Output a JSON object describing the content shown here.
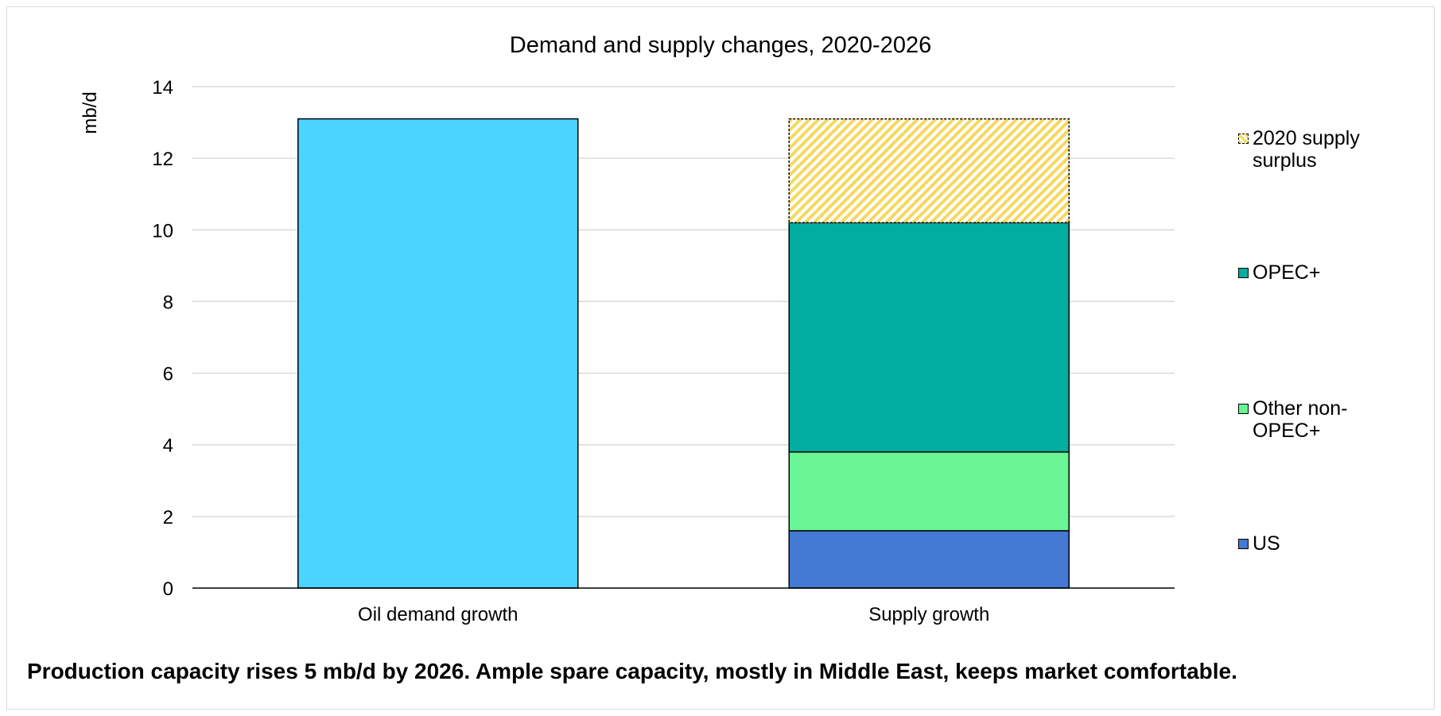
{
  "chart_data": {
    "type": "bar",
    "stacked": true,
    "title": "Demand and supply changes, 2020-2026",
    "ylabel": "mb/d",
    "xlabel": "",
    "ylim": [
      0,
      14
    ],
    "yticks": [
      0,
      2,
      4,
      6,
      8,
      10,
      12,
      14
    ],
    "categories": [
      "Oil demand growth",
      "Supply growth"
    ],
    "grid": true,
    "legend_position": "right",
    "series": [
      {
        "name": "Oil demand growth",
        "color": "#4ad4ff",
        "values": [
          13.1,
          0
        ],
        "in_legend": false
      },
      {
        "name": "US",
        "color": "#4479d4",
        "values": [
          0,
          1.6
        ]
      },
      {
        "name": "Other non-OPEC+",
        "color": "#69f593",
        "values": [
          0,
          2.2
        ]
      },
      {
        "name": "OPEC+",
        "color": "#00ad9f",
        "values": [
          0,
          6.4
        ]
      },
      {
        "name": "2020 supply surplus",
        "color": "#f6d860",
        "values": [
          0,
          2.9
        ],
        "pattern": "hatched"
      }
    ]
  },
  "legend": {
    "surplus": "2020 supply surplus",
    "opec": "OPEC+",
    "other": "Other non-OPEC+",
    "us": "US"
  },
  "caption": "Production capacity rises 5 mb/d by 2026. Ample spare capacity, mostly in Middle East, keeps market comfortable."
}
